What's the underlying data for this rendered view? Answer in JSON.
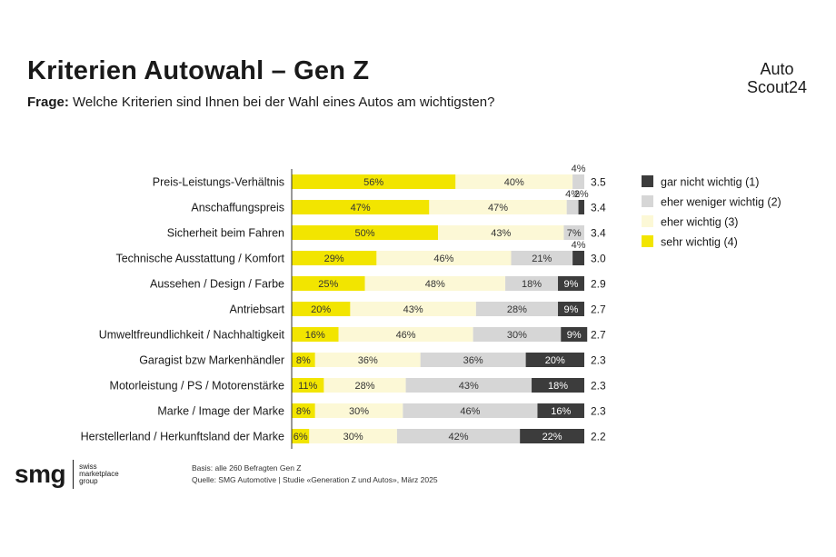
{
  "header": {
    "title": "Kriterien Autowahl – Gen Z",
    "question_label": "Frage:",
    "question_text": "Welche Kriterien sind Ihnen bei der Wahl eines Autos am wichtigsten?"
  },
  "logo": {
    "line1": "Auto",
    "line2": "Scout24"
  },
  "footer": {
    "brand": "smg",
    "brand_sub": [
      "swiss",
      "marketplace",
      "group"
    ],
    "basis": "Basis: alle 260 Befragten Gen Z",
    "source": "Quelle: SMG Automotive | Studie «Generation Z und Autos», März 2025"
  },
  "colors": {
    "sehr_wichtig": "#f2e500",
    "eher_wichtig": "#fcf8d6",
    "eher_weniger_wichtig": "#d6d6d6",
    "gar_nicht_wichtig": "#3c3c3c"
  },
  "chart_data": {
    "type": "bar",
    "orientation": "horizontal",
    "stacked": true,
    "categories": [
      "Preis-Leistungs-Verhältnis",
      "Anschaffungspreis",
      "Sicherheit beim Fahren",
      "Technische Ausstattung / Komfort",
      "Aussehen / Design / Farbe",
      "Antriebsart",
      "Umweltfreundlichkeit / Nachhaltigkeit",
      "Garagist bzw  Markenhändler",
      "Motorleistung / PS / Motorenstärke",
      "Marke / Image der Marke",
      "Herstellerland / Herkunftsland der Marke"
    ],
    "series": [
      {
        "name": "sehr wichtig (4)",
        "values": [
          56,
          47,
          50,
          29,
          25,
          20,
          16,
          8,
          11,
          8,
          6
        ]
      },
      {
        "name": "eher wichtig (3)",
        "values": [
          40,
          47,
          43,
          46,
          48,
          43,
          46,
          36,
          28,
          30,
          30
        ]
      },
      {
        "name": "eher weniger wichtig (2)",
        "values": [
          4,
          4,
          7,
          21,
          18,
          28,
          30,
          36,
          43,
          46,
          42
        ]
      },
      {
        "name": "gar nicht wichtig (1)",
        "values": [
          0,
          2,
          0,
          4,
          9,
          9,
          9,
          20,
          18,
          16,
          22
        ]
      }
    ],
    "averages": [
      "3.5",
      "3.4",
      "3.4",
      "3.0",
      "2.9",
      "2.7",
      "2.7",
      "2.3",
      "2.3",
      "2.3",
      "2.2"
    ],
    "legend": {
      "placement": "right",
      "entries": [
        "gar nicht wichtig (1)",
        "eher weniger wichtig (2)",
        "eher wichtig (3)",
        "sehr wichtig (4)"
      ]
    },
    "xlim": [
      0,
      100
    ],
    "unit": "%"
  }
}
